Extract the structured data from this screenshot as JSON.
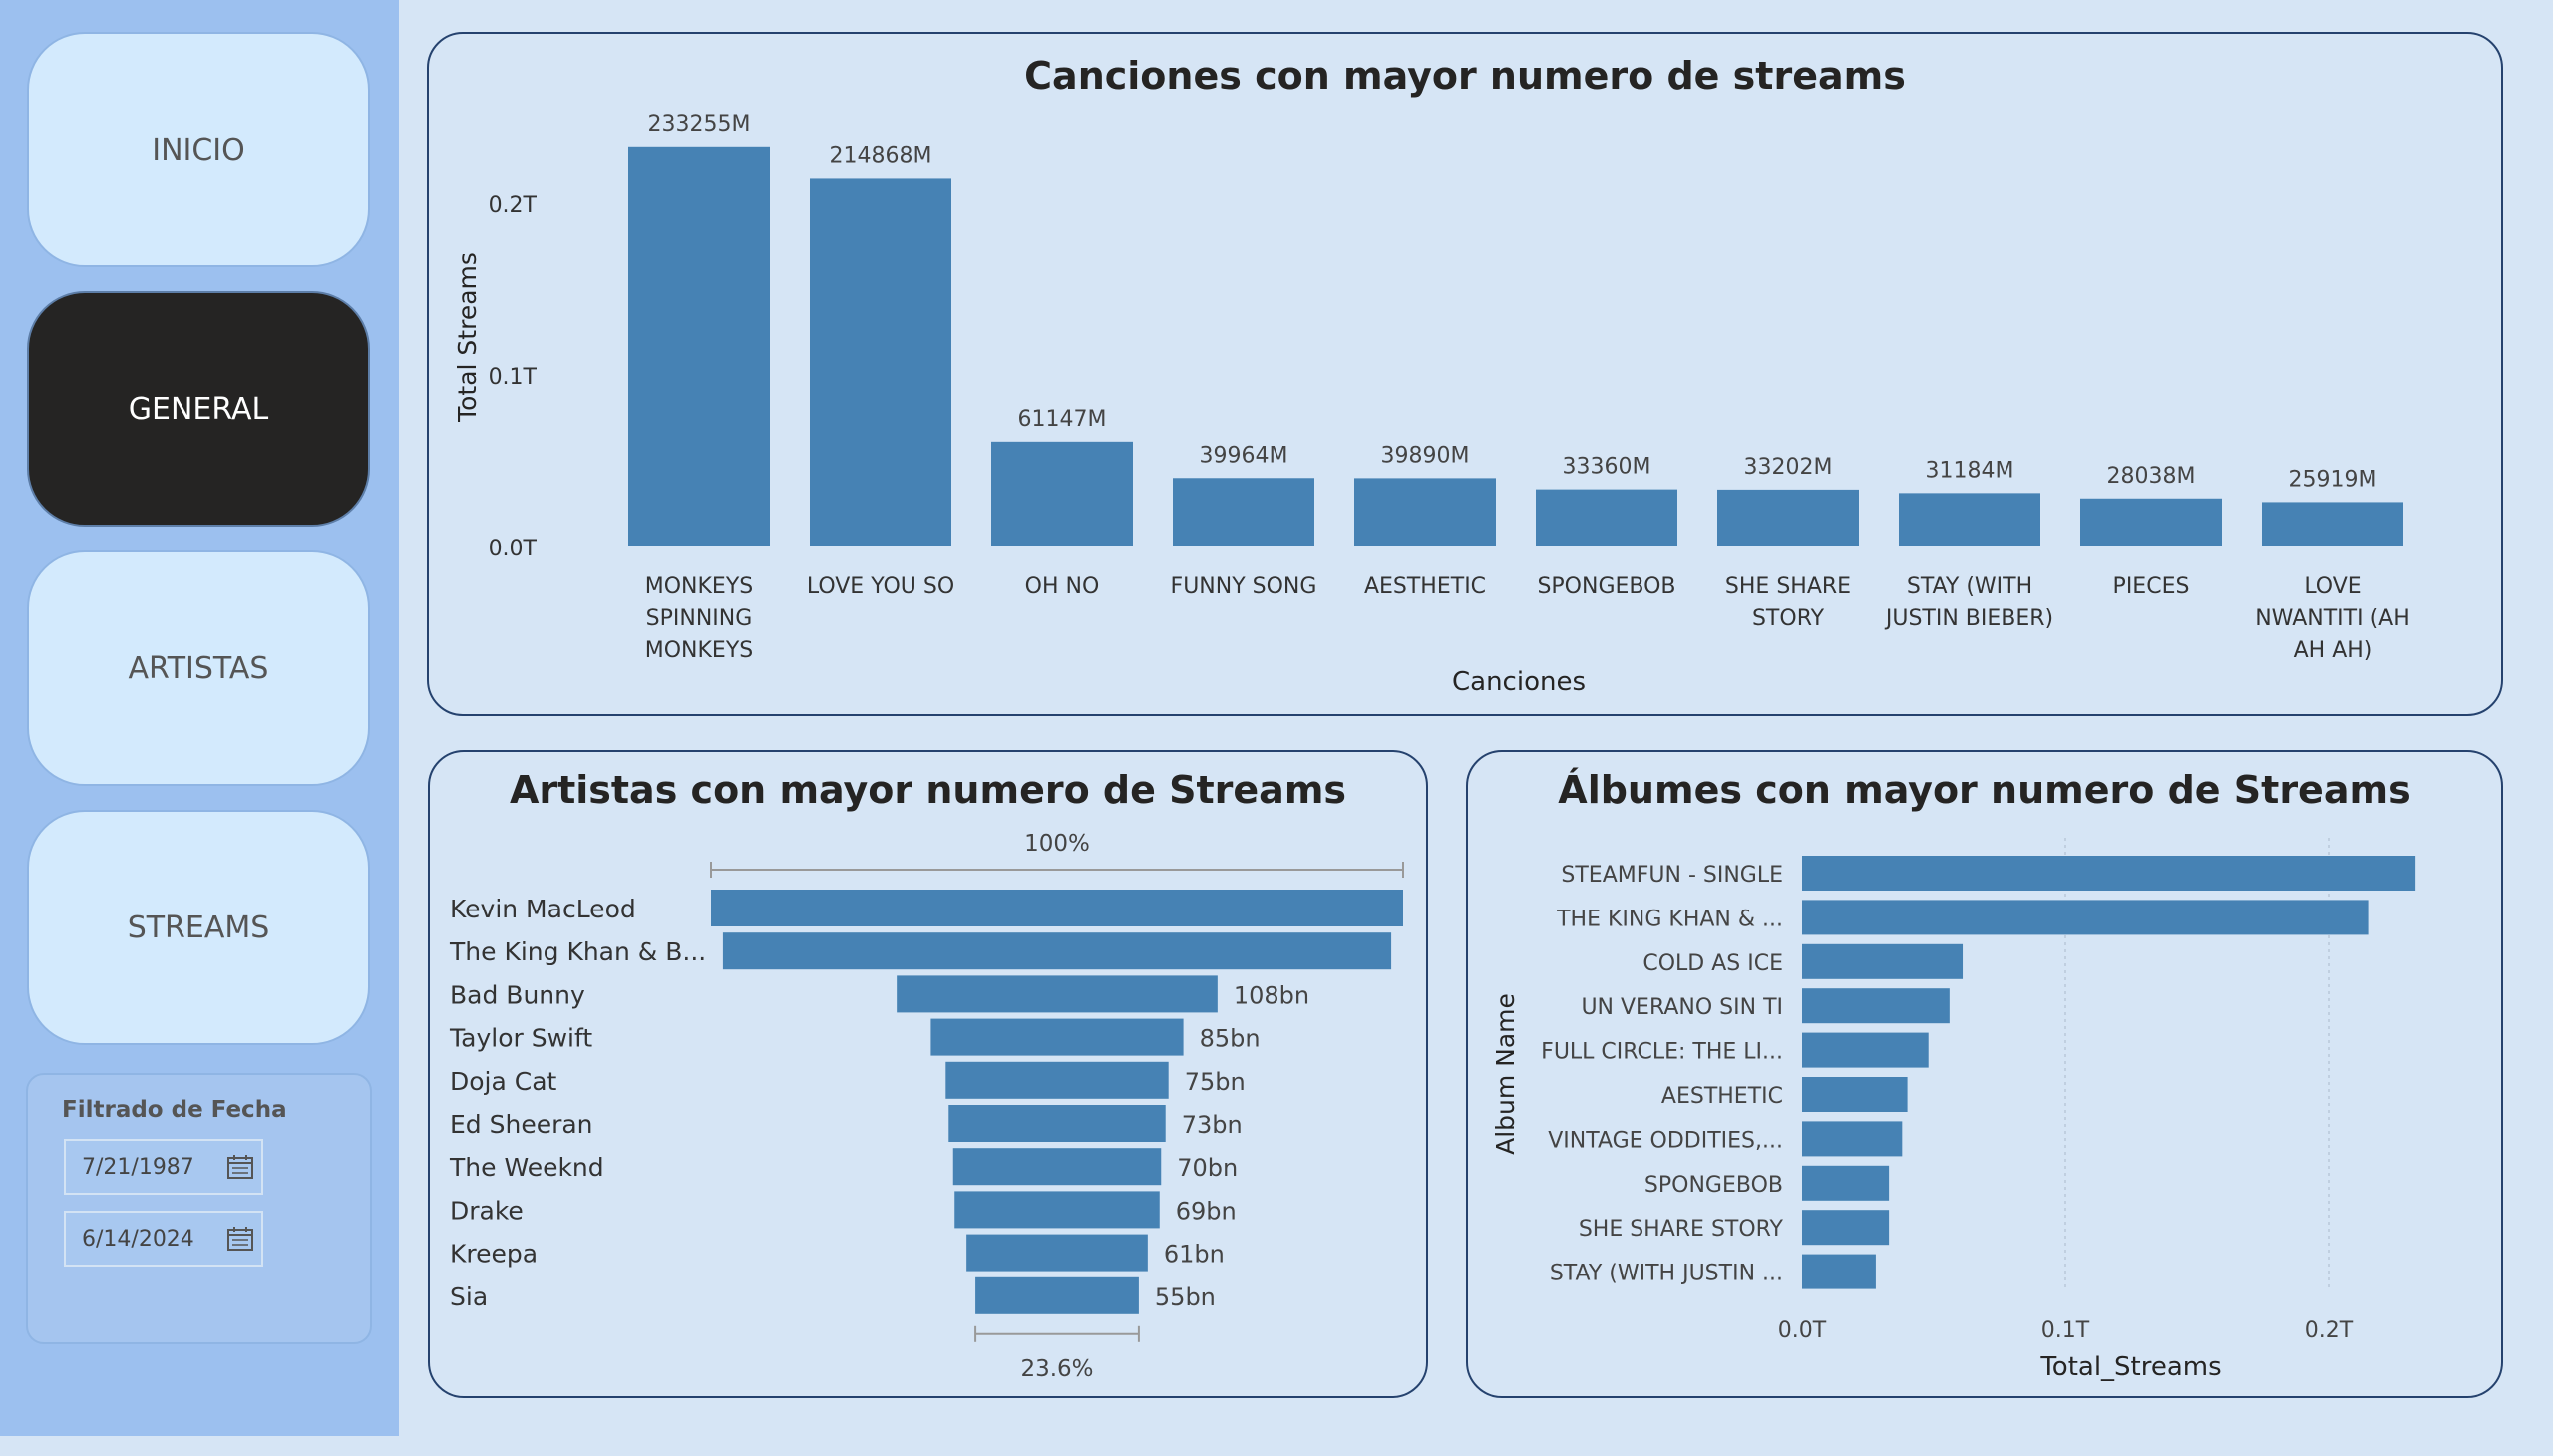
{
  "nav": {
    "inicio": "INICIO",
    "general": "GENERAL",
    "artistas": "ARTISTAS",
    "streams": "STREAMS"
  },
  "filter": {
    "title": "Filtrado de Fecha",
    "start_date": "7/21/1987",
    "end_date": "6/14/2024"
  },
  "colors": {
    "bar": "#4682b4",
    "accent": "#252423"
  },
  "chart_data": [
    {
      "type": "bar",
      "title": "Canciones con mayor numero de streams",
      "xlabel": "Canciones",
      "ylabel": "Total Streams",
      "ylim": [
        0,
        0.25
      ],
      "yticks": [
        "0.0T",
        "0.1T",
        "0.2T"
      ],
      "categories": [
        [
          "MONKEYS",
          "SPINNING",
          "MONKEYS"
        ],
        [
          "LOVE YOU SO"
        ],
        [
          "OH NO"
        ],
        [
          "FUNNY SONG"
        ],
        [
          "AESTHETIC"
        ],
        [
          "SPONGEBOB"
        ],
        [
          "SHE SHARE",
          "STORY"
        ],
        [
          "STAY (WITH",
          "JUSTIN BIEBER)"
        ],
        [
          "PIECES"
        ],
        [
          "LOVE",
          "NWANTITI (AH",
          "AH AH)"
        ]
      ],
      "values": [
        233255,
        214868,
        61147,
        39964,
        39890,
        33360,
        33202,
        31184,
        28038,
        25919
      ],
      "data_labels": [
        "233255M",
        "214868M",
        "61147M",
        "39964M",
        "39890M",
        "33360M",
        "33202M",
        "31184M",
        "28038M",
        "25919M"
      ]
    },
    {
      "type": "bar",
      "subtype": "funnel",
      "title": "Artistas con mayor numero de Streams",
      "top_label": "100%",
      "bottom_label": "23.6%",
      "categories": [
        "Kevin MacLeod",
        "The King Khan & B...",
        "Bad Bunny",
        "Taylor Swift",
        "Doja Cat",
        "Ed Sheeran",
        "The Weeknd",
        "Drake",
        "Kreepa",
        "Sia"
      ],
      "values": [
        233,
        225,
        108,
        85,
        75,
        73,
        70,
        69,
        61,
        55
      ],
      "data_labels": [
        "",
        "",
        "108bn",
        "85bn",
        "75bn",
        "73bn",
        "70bn",
        "69bn",
        "61bn",
        "55bn"
      ]
    },
    {
      "type": "bar",
      "orientation": "horizontal",
      "title": "Álbumes con mayor numero de Streams",
      "xlabel": "Total_Streams",
      "ylabel": "Album Name",
      "xlim": [
        0,
        0.25
      ],
      "xticks": [
        "0.0T",
        "0.1T",
        "0.2T"
      ],
      "categories": [
        "STEAMFUN - SINGLE",
        "THE KING KHAN & ...",
        "COLD AS ICE",
        "UN VERANO SIN TI",
        "FULL CIRCLE: THE LI...",
        "AESTHETIC",
        "VINTAGE ODDITIES,...",
        "SPONGEBOB",
        "SHE SHARE STORY",
        "STAY (WITH JUSTIN ..."
      ],
      "values": [
        0.233,
        0.215,
        0.061,
        0.056,
        0.048,
        0.04,
        0.038,
        0.033,
        0.033,
        0.028
      ]
    }
  ]
}
